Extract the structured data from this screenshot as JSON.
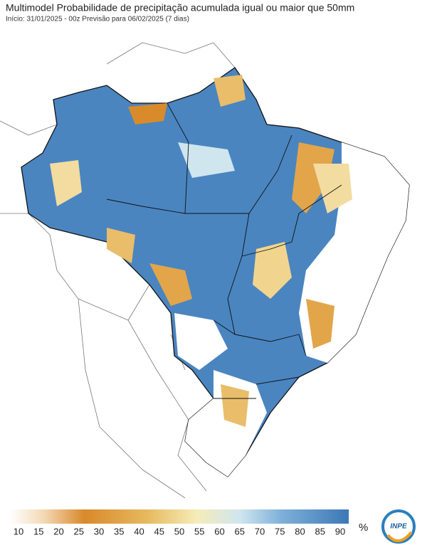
{
  "header": {
    "title": "Multimodel Probabilidade de precipitação acumulada igual ou maior que 50mm",
    "subtitle": "Início: 31/01/2025 - 00z  Previsão para 06/02/2025 (7 dias)"
  },
  "legend": {
    "ticks": [
      10,
      15,
      20,
      25,
      30,
      35,
      40,
      45,
      50,
      55,
      60,
      65,
      70,
      75,
      80,
      85,
      90
    ],
    "unit": "%"
  },
  "logo": {
    "text": "INPE"
  }
}
